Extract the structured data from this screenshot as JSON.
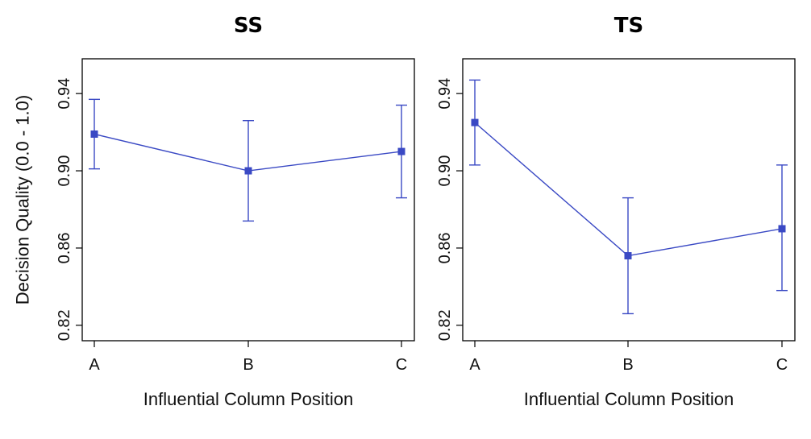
{
  "style": {
    "series_color": "#3a49c4"
  },
  "ylabel": "Decision Quality (0.0 - 1.0)",
  "chart_data": [
    {
      "type": "line",
      "title": "SS",
      "xlabel": "Influential Column Position",
      "ylabel": "Decision Quality (0.0 - 1.0)",
      "categories": [
        "A",
        "B",
        "C"
      ],
      "ylim": [
        0.812,
        0.958
      ],
      "yticks": [
        "0.82",
        "0.86",
        "0.90",
        "0.94"
      ],
      "grid": false,
      "values": [
        0.919,
        0.9,
        0.91
      ],
      "error_low": [
        0.901,
        0.874,
        0.886
      ],
      "error_high": [
        0.937,
        0.926,
        0.934
      ]
    },
    {
      "type": "line",
      "title": "TS",
      "xlabel": "Influential Column Position",
      "ylabel": "",
      "categories": [
        "A",
        "B",
        "C"
      ],
      "ylim": [
        0.812,
        0.958
      ],
      "yticks": [
        "0.82",
        "0.86",
        "0.90",
        "0.94"
      ],
      "grid": false,
      "values": [
        0.925,
        0.856,
        0.87
      ],
      "error_low": [
        0.903,
        0.826,
        0.838
      ],
      "error_high": [
        0.947,
        0.886,
        0.903
      ]
    }
  ]
}
